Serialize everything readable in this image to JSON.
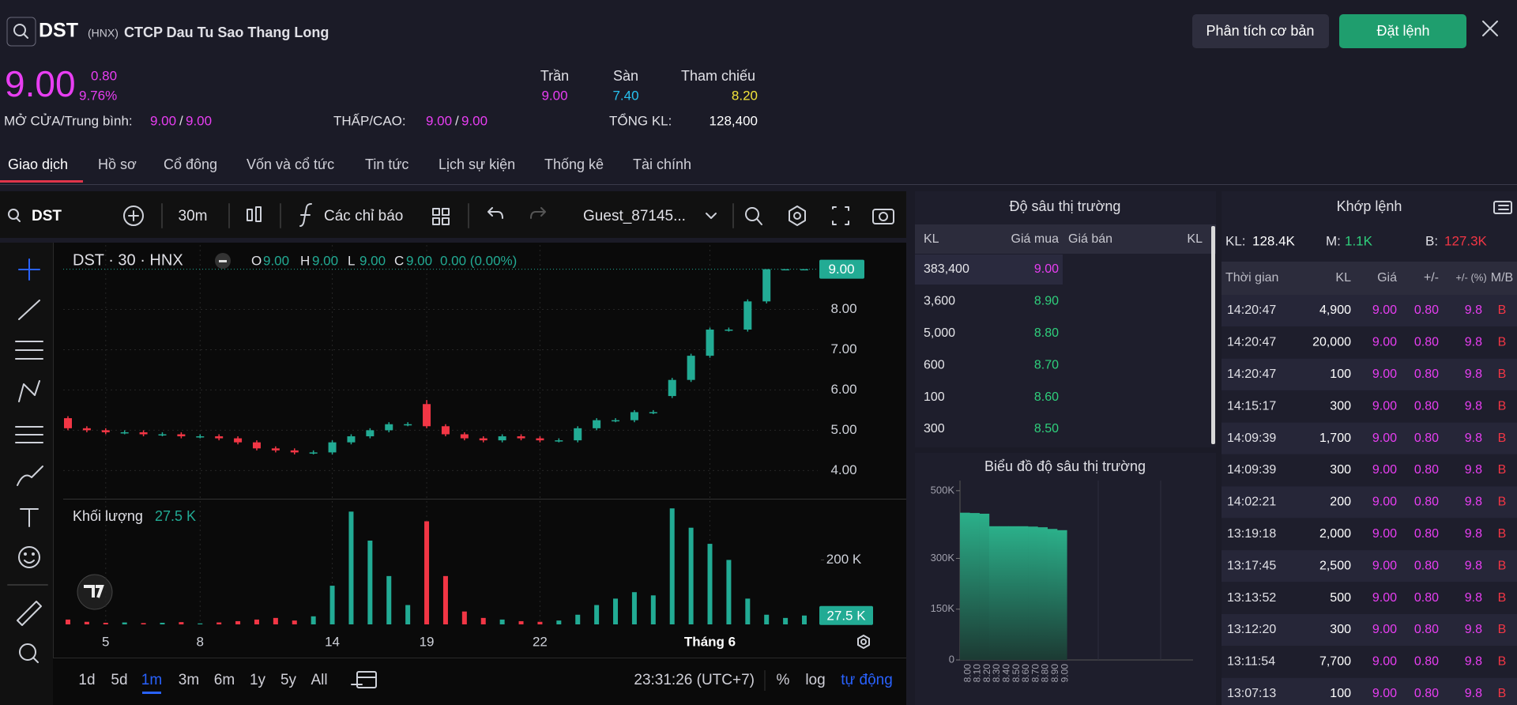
{
  "header": {
    "symbol": "DST",
    "exchange": "(HNX)",
    "company": "CTCP Dau Tu Sao Thang Long",
    "buttons": [
      "Phân tích cơ bản",
      "Đặt lệnh"
    ]
  },
  "quote": {
    "price": "9.00",
    "change": "0.80",
    "change_pct": "9.76%",
    "limits": [
      {
        "label": "Trần",
        "value": "9.00"
      },
      {
        "label": "Sàn",
        "value": "7.40"
      },
      {
        "label": "Tham chiếu",
        "value": "8.20"
      }
    ],
    "separator": "/",
    "stats": [
      {
        "label": "MỞ CỬA/Trung bình:",
        "values": [
          "9.00",
          "9.00"
        ]
      },
      {
        "label": "THẤP/CAO:",
        "values": [
          "9.00",
          "9.00"
        ]
      },
      {
        "label": "TỔNG KL:",
        "values": [
          "128,400"
        ]
      }
    ]
  },
  "tabs": [
    "Giao dịch",
    "Hồ sơ",
    "Cổ đông",
    "Vốn và cổ tức",
    "Tin tức",
    "Lịch sự kiện",
    "Thống kê",
    "Tài chính"
  ],
  "toolbar": {
    "symbol": "DST",
    "interval": "30m",
    "indicators": "Các chỉ báo",
    "user": "Guest_87145..."
  },
  "chart": {
    "type": "candlestick",
    "legend_title": "DST · 30 · HNX",
    "ohlc": [
      {
        "key": "O",
        "value": "9.00"
      },
      {
        "key": "H",
        "value": "9.00"
      },
      {
        "key": "L",
        "value": "9.00"
      },
      {
        "key": "C",
        "value": "9.00"
      }
    ],
    "change": "0.00 (0.00%)",
    "last_price": "9.00",
    "x": [
      null,
      null,
      "5",
      null,
      null,
      null,
      null,
      "8",
      null,
      null,
      null,
      null,
      null,
      null,
      "14",
      null,
      null,
      null,
      null,
      "19",
      null,
      null,
      null,
      null,
      null,
      "22",
      null,
      null,
      null,
      null,
      null,
      null,
      null,
      null,
      "Tháng 6",
      null,
      null,
      null,
      null,
      null
    ],
    "open": [
      5.3,
      5.05,
      5.0,
      4.95,
      4.95,
      4.9,
      4.9,
      4.85,
      4.85,
      4.8,
      4.7,
      4.55,
      4.5,
      4.45,
      4.45,
      4.7,
      4.85,
      5.0,
      5.15,
      5.65,
      5.1,
      4.9,
      4.8,
      4.75,
      4.85,
      4.8,
      4.75,
      4.75,
      5.05,
      5.25,
      5.25,
      5.45,
      5.85,
      6.25,
      6.85,
      7.5,
      7.5,
      8.2,
      9.0,
      9.0
    ],
    "high": [
      5.35,
      5.1,
      5.05,
      5.0,
      5.0,
      4.95,
      4.95,
      4.9,
      4.9,
      4.85,
      4.75,
      4.6,
      4.55,
      4.5,
      4.75,
      4.9,
      5.05,
      5.2,
      5.2,
      5.75,
      5.15,
      4.95,
      4.85,
      4.9,
      4.9,
      4.85,
      4.8,
      5.1,
      5.3,
      5.3,
      5.5,
      5.5,
      6.3,
      6.9,
      7.55,
      7.55,
      8.25,
      9.0,
      9.0,
      9.0
    ],
    "low": [
      5.0,
      4.95,
      4.9,
      4.9,
      4.85,
      4.85,
      4.8,
      4.8,
      4.75,
      4.65,
      4.5,
      4.45,
      4.4,
      4.4,
      4.4,
      4.65,
      4.8,
      4.95,
      5.1,
      5.05,
      4.85,
      4.75,
      4.7,
      4.7,
      4.75,
      4.7,
      4.7,
      4.7,
      5.0,
      5.2,
      5.2,
      5.4,
      5.8,
      6.2,
      6.8,
      7.45,
      7.45,
      8.15,
      9.0,
      9.0
    ],
    "close": [
      5.05,
      5.0,
      4.95,
      4.95,
      4.9,
      4.9,
      4.85,
      4.85,
      4.8,
      4.7,
      4.55,
      4.5,
      4.45,
      4.45,
      4.7,
      4.85,
      5.0,
      5.15,
      5.15,
      5.1,
      4.9,
      4.8,
      4.75,
      4.85,
      4.8,
      4.75,
      4.75,
      5.05,
      5.25,
      5.25,
      5.45,
      5.45,
      6.25,
      6.85,
      7.5,
      7.5,
      8.2,
      9.0,
      9.0,
      9.0
    ],
    "ylim": [
      3.3,
      9.6
    ],
    "yticks": [
      {
        "value": 4,
        "label": "4.00"
      },
      {
        "value": 5,
        "label": "5.00"
      },
      {
        "value": 6,
        "label": "6.00"
      },
      {
        "value": 7,
        "label": "7.00"
      },
      {
        "value": 8,
        "label": "8.00"
      }
    ],
    "up_color": "#22ab94",
    "down_color": "#f23645",
    "volume_title": "Khối lượng",
    "volume_label": "27.5 K",
    "volume": [
      15000,
      8000,
      5000,
      6000,
      4000,
      5000,
      7000,
      3000,
      6000,
      10000,
      15000,
      20000,
      12000,
      25000,
      120000,
      350000,
      260000,
      150000,
      60000,
      320000,
      150000,
      40000,
      20000,
      15000,
      10000,
      8000,
      12000,
      30000,
      60000,
      80000,
      100000,
      90000,
      360000,
      300000,
      250000,
      200000,
      80000,
      30000,
      20000,
      27500
    ],
    "volume_ylim": [
      0,
      390000
    ],
    "volume_yticks": [
      {
        "value": 200000,
        "label": "200 K"
      }
    ],
    "grid": true,
    "ranges": [
      "1d",
      "5d",
      "1m",
      "3m",
      "6m",
      "1y",
      "5y",
      "All"
    ],
    "selected_range": 2,
    "clock": "23:31:26 (UTC+7)",
    "scale_options": [
      "%",
      "log",
      "tự động"
    ],
    "selected_scale": 2
  },
  "depth_table": {
    "title": "Độ sâu thị trường",
    "headers": [
      "KL",
      "Giá mua",
      "Giá bán",
      "KL"
    ],
    "rows": [
      [
        "383,400",
        "9.00"
      ],
      [
        "3,600",
        "8.90"
      ],
      [
        "5,000",
        "8.80"
      ],
      [
        "600",
        "8.70"
      ],
      [
        "100",
        "8.60"
      ],
      [
        "300",
        "8.50"
      ]
    ]
  },
  "depth_chart": {
    "type": "bar",
    "title": "Biểu đồ độ sâu thị trường",
    "categories": [
      "8.00",
      "8.10",
      "8.20",
      "8.30",
      "8.40",
      "8.50",
      "8.60",
      "8.70",
      "8.80",
      "8.90",
      "9.00"
    ],
    "values": [
      435000,
      434000,
      432000,
      395000,
      395000,
      395000,
      395000,
      394000,
      392000,
      387000,
      383400
    ],
    "ylim": [
      0,
      530000
    ],
    "yticks": [
      0,
      {
        "value": 150000,
        "label": "150K"
      },
      {
        "value": 300000,
        "label": "300K"
      },
      {
        "value": 500000,
        "label": "500K"
      }
    ],
    "color": "#2bb08a"
  },
  "trades": {
    "title": "Khớp lệnh",
    "summary": [
      {
        "label": "KL:",
        "value": "128.4K"
      },
      {
        "label": "M:",
        "value": "1.1K"
      },
      {
        "label": "B:",
        "value": "127.3K"
      }
    ],
    "headers": [
      "Thời gian",
      "KL",
      "Giá",
      "+/-",
      "+/- (%)",
      "M/B"
    ],
    "rows": [
      [
        "14:20:47",
        "4,900",
        "9.00",
        "0.80",
        "9.8",
        "B"
      ],
      [
        "14:20:47",
        "20,000",
        "9.00",
        "0.80",
        "9.8",
        "B"
      ],
      [
        "14:20:47",
        "100",
        "9.00",
        "0.80",
        "9.8",
        "B"
      ],
      [
        "14:15:17",
        "300",
        "9.00",
        "0.80",
        "9.8",
        "B"
      ],
      [
        "14:09:39",
        "1,700",
        "9.00",
        "0.80",
        "9.8",
        "B"
      ],
      [
        "14:09:39",
        "300",
        "9.00",
        "0.80",
        "9.8",
        "B"
      ],
      [
        "14:02:21",
        "200",
        "9.00",
        "0.80",
        "9.8",
        "B"
      ],
      [
        "13:19:18",
        "2,000",
        "9.00",
        "0.80",
        "9.8",
        "B"
      ],
      [
        "13:17:45",
        "2,500",
        "9.00",
        "0.80",
        "9.8",
        "B"
      ],
      [
        "13:13:52",
        "500",
        "9.00",
        "0.80",
        "9.8",
        "B"
      ],
      [
        "13:12:20",
        "300",
        "9.00",
        "0.80",
        "9.8",
        "B"
      ],
      [
        "13:11:54",
        "7,700",
        "9.00",
        "0.80",
        "9.8",
        "B"
      ],
      [
        "13:07:13",
        "100",
        "9.00",
        "0.80",
        "9.8",
        "B"
      ]
    ]
  }
}
